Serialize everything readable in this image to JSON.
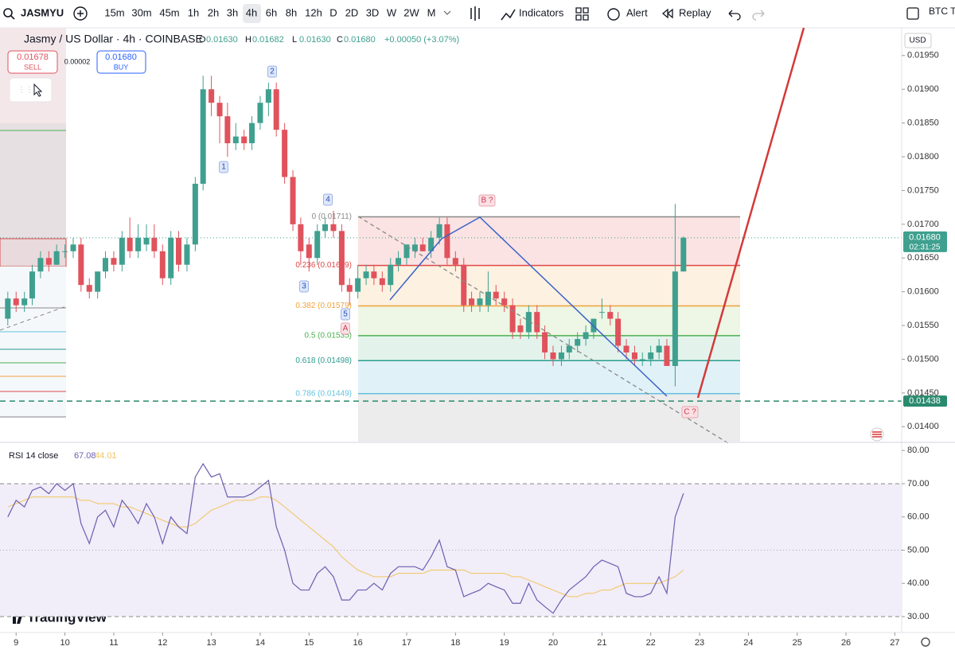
{
  "toolbar": {
    "symbol": "JASMYU",
    "intervals": [
      "15m",
      "30m",
      "45m",
      "1h",
      "2h",
      "3h",
      "4h",
      "6h",
      "8h",
      "12h",
      "D",
      "2D",
      "3D",
      "W",
      "2W",
      "M"
    ],
    "indicators": "Indicators",
    "alert": "Alert",
    "replay": "Replay",
    "right": "BTC T"
  },
  "legend": {
    "title": "Jasmy / US Dollar · 4h · COINBASE",
    "fields": [
      {
        "key": "O",
        "value": "0.01630"
      },
      {
        "key": "H",
        "value": "0.01682"
      },
      {
        "key": "L",
        "value": "0.01630"
      },
      {
        "key": "C",
        "value": "0.01680"
      }
    ],
    "change": "+0.00050 (+3.07%)"
  },
  "trade": {
    "sell_price": "0.01678",
    "sell": "SELL",
    "spread": "0.00002",
    "buy_price": "0.01680",
    "buy": "BUY"
  },
  "brand": "TradingView",
  "chart_data": [
    {
      "type": "candlestick",
      "currency": "USD",
      "up_color": "#3fa08f",
      "down_color": "#e0525c",
      "x": [
        8.83,
        9,
        9.17,
        9.33,
        9.5,
        9.67,
        9.83,
        10,
        10.17,
        10.33,
        10.5,
        10.67,
        10.83,
        11,
        11.17,
        11.33,
        11.5,
        11.67,
        11.83,
        12,
        12.17,
        12.33,
        12.5,
        12.67,
        12.83,
        13,
        13.17,
        13.33,
        13.5,
        13.67,
        13.83,
        14,
        14.17,
        14.33,
        14.5,
        14.67,
        14.83,
        15,
        15.17,
        15.33,
        15.5,
        15.67,
        15.83,
        16,
        16.17,
        16.33,
        16.5,
        16.67,
        16.83,
        17,
        17.17,
        17.33,
        17.5,
        17.67,
        17.83,
        18,
        18.17,
        18.33,
        18.5,
        18.67,
        18.83,
        19,
        19.17,
        19.33,
        19.5,
        19.67,
        19.83,
        20,
        20.17,
        20.33,
        20.5,
        20.67,
        20.83,
        21,
        21.17,
        21.33,
        21.5,
        21.67,
        21.83,
        22,
        22.17,
        22.33,
        22.5,
        22.67
      ],
      "ohlc": [
        [
          0.0156,
          0.016,
          0.0155,
          0.0159
        ],
        [
          0.0159,
          0.016,
          0.0157,
          0.0158
        ],
        [
          0.0158,
          0.016,
          0.0157,
          0.0159
        ],
        [
          0.0159,
          0.0164,
          0.0158,
          0.0163
        ],
        [
          0.0163,
          0.0166,
          0.0162,
          0.0165
        ],
        [
          0.0165,
          0.0166,
          0.0163,
          0.0164
        ],
        [
          0.0164,
          0.0167,
          0.0164,
          0.0166
        ],
        [
          0.0166,
          0.0167,
          0.0165,
          0.0166
        ],
        [
          0.0166,
          0.0168,
          0.0165,
          0.0167
        ],
        [
          0.0167,
          0.0168,
          0.016,
          0.0161
        ],
        [
          0.0161,
          0.0162,
          0.0159,
          0.016
        ],
        [
          0.016,
          0.0163,
          0.0159,
          0.0163
        ],
        [
          0.0163,
          0.0166,
          0.0162,
          0.0165
        ],
        [
          0.0165,
          0.0166,
          0.0163,
          0.0164
        ],
        [
          0.0164,
          0.0169,
          0.0163,
          0.0168
        ],
        [
          0.0168,
          0.0171,
          0.0165,
          0.0166
        ],
        [
          0.0166,
          0.017,
          0.0165,
          0.0168
        ],
        [
          0.0167,
          0.017,
          0.0166,
          0.0168
        ],
        [
          0.0168,
          0.017,
          0.0165,
          0.0166
        ],
        [
          0.0166,
          0.0167,
          0.0161,
          0.0162
        ],
        [
          0.0162,
          0.0169,
          0.0161,
          0.0168
        ],
        [
          0.0168,
          0.0169,
          0.0163,
          0.0164
        ],
        [
          0.0164,
          0.0168,
          0.0163,
          0.0167
        ],
        [
          0.0167,
          0.0177,
          0.0166,
          0.0176
        ],
        [
          0.0176,
          0.0192,
          0.0175,
          0.019
        ],
        [
          0.019,
          0.0192,
          0.0186,
          0.0188
        ],
        [
          0.0188,
          0.0189,
          0.0182,
          0.0186
        ],
        [
          0.0186,
          0.0188,
          0.018,
          0.0182
        ],
        [
          0.0182,
          0.0185,
          0.0181,
          0.0183
        ],
        [
          0.0183,
          0.0184,
          0.0181,
          0.0182
        ],
        [
          0.0182,
          0.0186,
          0.0181,
          0.0185
        ],
        [
          0.0185,
          0.0189,
          0.0184,
          0.0188
        ],
        [
          0.0188,
          0.0191,
          0.0186,
          0.019
        ],
        [
          0.019,
          0.0191,
          0.0183,
          0.0184
        ],
        [
          0.0184,
          0.0185,
          0.0176,
          0.0177
        ],
        [
          0.0177,
          0.0178,
          0.0169,
          0.017
        ],
        [
          0.017,
          0.0171,
          0.0164,
          0.0166
        ],
        [
          0.0167,
          0.0168,
          0.0163,
          0.0165
        ],
        [
          0.0165,
          0.017,
          0.0164,
          0.0169
        ],
        [
          0.0169,
          0.0171,
          0.0168,
          0.017
        ],
        [
          0.017,
          0.0172,
          0.0168,
          0.0169
        ],
        [
          0.0169,
          0.017,
          0.016,
          0.0161
        ],
        [
          0.0161,
          0.0162,
          0.0158,
          0.016
        ],
        [
          0.016,
          0.0164,
          0.0159,
          0.0162
        ],
        [
          0.0162,
          0.0164,
          0.0161,
          0.0163
        ],
        [
          0.0163,
          0.0164,
          0.0161,
          0.0162
        ],
        [
          0.0162,
          0.0163,
          0.016,
          0.0161
        ],
        [
          0.0161,
          0.0165,
          0.016,
          0.0164
        ],
        [
          0.0164,
          0.0166,
          0.0163,
          0.0165
        ],
        [
          0.0165,
          0.0167,
          0.0164,
          0.0167
        ],
        [
          0.0166,
          0.0168,
          0.0165,
          0.0167
        ],
        [
          0.0167,
          0.0168,
          0.0166,
          0.0166
        ],
        [
          0.0166,
          0.0169,
          0.0165,
          0.0168
        ],
        [
          0.0168,
          0.0171,
          0.0167,
          0.017
        ],
        [
          0.017,
          0.0171,
          0.0164,
          0.0165
        ],
        [
          0.0165,
          0.0166,
          0.0163,
          0.0164
        ],
        [
          0.0164,
          0.0165,
          0.0157,
          0.0158
        ],
        [
          0.0159,
          0.016,
          0.0157,
          0.0158
        ],
        [
          0.0158,
          0.016,
          0.0157,
          0.0159
        ],
        [
          0.0158,
          0.0163,
          0.0157,
          0.016
        ],
        [
          0.016,
          0.0161,
          0.0158,
          0.0159
        ],
        [
          0.0159,
          0.016,
          0.0157,
          0.0158
        ],
        [
          0.0158,
          0.0159,
          0.0153,
          0.0154
        ],
        [
          0.0155,
          0.0156,
          0.0153,
          0.0154
        ],
        [
          0.0154,
          0.0158,
          0.0153,
          0.0157
        ],
        [
          0.0157,
          0.0158,
          0.0153,
          0.0154
        ],
        [
          0.0154,
          0.0155,
          0.015,
          0.0151
        ],
        [
          0.0151,
          0.0152,
          0.0149,
          0.015
        ],
        [
          0.015,
          0.0152,
          0.0149,
          0.0151
        ],
        [
          0.0151,
          0.0153,
          0.015,
          0.0152
        ],
        [
          0.0152,
          0.0154,
          0.0151,
          0.0153
        ],
        [
          0.0153,
          0.0155,
          0.0152,
          0.0154
        ],
        [
          0.0154,
          0.0156,
          0.0153,
          0.0156
        ],
        [
          0.0157,
          0.0159,
          0.0156,
          0.0157
        ],
        [
          0.0157,
          0.0158,
          0.0155,
          0.0156
        ],
        [
          0.0156,
          0.0157,
          0.0151,
          0.0152
        ],
        [
          0.0152,
          0.0153,
          0.015,
          0.0151
        ],
        [
          0.0151,
          0.0152,
          0.0149,
          0.015
        ],
        [
          0.015,
          0.0151,
          0.0149,
          0.015
        ],
        [
          0.015,
          0.0152,
          0.0149,
          0.0151
        ],
        [
          0.0151,
          0.0153,
          0.015,
          0.0152
        ],
        [
          0.0152,
          0.0153,
          0.0149,
          0.0149
        ],
        [
          0.0149,
          0.0173,
          0.0146,
          0.0163
        ],
        [
          0.0163,
          0.01682,
          0.0163,
          0.0168
        ]
      ],
      "xlim": [
        8.67,
        27.14
      ],
      "xticks": [
        9,
        10,
        11,
        12,
        13,
        14,
        15,
        16,
        17,
        18,
        19,
        20,
        21,
        22,
        23,
        24,
        25,
        26,
        27
      ],
      "ylim": [
        0.01378,
        0.01991
      ],
      "yticks": [
        {
          "value": 0.014,
          "label": "0.01400"
        },
        {
          "value": 0.0145,
          "label": "0.01450"
        },
        {
          "value": 0.015,
          "label": "0.01500"
        },
        {
          "value": 0.0155,
          "label": "0.01550"
        },
        {
          "value": 0.016,
          "label": "0.01600"
        },
        {
          "value": 0.0165,
          "label": "0.01650"
        },
        {
          "value": 0.017,
          "label": "0.01700"
        },
        {
          "value": 0.0175,
          "label": "0.01750"
        },
        {
          "value": 0.018,
          "label": "0.01800"
        },
        {
          "value": 0.0185,
          "label": "0.01850"
        },
        {
          "value": 0.019,
          "label": "0.01900"
        },
        {
          "value": 0.0195,
          "label": "0.01950"
        }
      ],
      "last_price": {
        "value": 0.0168,
        "label": "0.01680"
      },
      "countdown": "02:31:25",
      "alert_price": {
        "value": 0.01438,
        "label": "0.01438"
      },
      "fib": [
        {
          "label": "0 (0.01711)",
          "price": 0.01711,
          "color": "#8a8a8a",
          "fill": "#fbe3e3"
        },
        {
          "label": "0.236 (0.01639)",
          "price": 0.01639,
          "color": "#e04848",
          "fill": "#fdf1e1"
        },
        {
          "label": "0.382 (0.01579)",
          "price": 0.01579,
          "color": "#f0a23c",
          "fill": "#eef6e5"
        },
        {
          "label": "0.5 (0.01535)",
          "price": 0.01535,
          "color": "#4caf50",
          "fill": "#e3f3ec"
        },
        {
          "label": "0.618 (0.01498)",
          "price": 0.01498,
          "color": "#2a9d8f",
          "fill": "#e0f1f7"
        },
        {
          "label": "0.786 (0.01449)",
          "price": 0.01449,
          "color": "#64c1e0",
          "fill": "#ececec"
        }
      ],
      "waves": [
        "1",
        "2",
        "3",
        "4",
        "5",
        "A",
        "B ?",
        "C ?"
      ]
    },
    {
      "type": "line",
      "title": "RSI 14 close",
      "last_labels": [
        "67.08",
        "44.01"
      ],
      "x": [
        8.83,
        9,
        9.17,
        9.33,
        9.5,
        9.67,
        9.83,
        10,
        10.17,
        10.33,
        10.5,
        10.67,
        10.83,
        11,
        11.17,
        11.33,
        11.5,
        11.67,
        11.83,
        12,
        12.17,
        12.33,
        12.5,
        12.67,
        12.83,
        13,
        13.17,
        13.33,
        13.5,
        13.67,
        13.83,
        14,
        14.17,
        14.33,
        14.5,
        14.67,
        14.83,
        15,
        15.17,
        15.33,
        15.5,
        15.67,
        15.83,
        16,
        16.17,
        16.33,
        16.5,
        16.67,
        16.83,
        17,
        17.17,
        17.33,
        17.5,
        17.67,
        17.83,
        18,
        18.17,
        18.33,
        18.5,
        18.67,
        18.83,
        19,
        19.17,
        19.33,
        19.5,
        19.67,
        19.83,
        20,
        20.17,
        20.33,
        20.5,
        20.67,
        20.83,
        21,
        21.17,
        21.33,
        21.5,
        21.67,
        21.83,
        22,
        22.17,
        22.33,
        22.5,
        22.67
      ],
      "series": [
        {
          "color": "#6c5fb0",
          "values": [
            60,
            65,
            63,
            68,
            69,
            67,
            70,
            68,
            70,
            58,
            52,
            60,
            62,
            57,
            65,
            62,
            58,
            64,
            60,
            52,
            60,
            57,
            55,
            72,
            76,
            72,
            73,
            66,
            66,
            66,
            67,
            69,
            71,
            57,
            50,
            40,
            38,
            38,
            43,
            45,
            42,
            35,
            35,
            38,
            38,
            40,
            38,
            43,
            45,
            45,
            45,
            44,
            48,
            53,
            45,
            44,
            36,
            37,
            38,
            40,
            39,
            38,
            34,
            34,
            40,
            35,
            33,
            31,
            35,
            38,
            40,
            42,
            45,
            47,
            46,
            45,
            37,
            36,
            36,
            37,
            42,
            37,
            60,
            67.08
          ]
        },
        {
          "color": "#f2c55c",
          "values": [
            63,
            64,
            65,
            66,
            66,
            66,
            66,
            66,
            66,
            65,
            65,
            64,
            64,
            64,
            63,
            63,
            62,
            61,
            60,
            59,
            58,
            57,
            57,
            58,
            60,
            62,
            63,
            64,
            65,
            65,
            65,
            66,
            66,
            65,
            63,
            61,
            59,
            57,
            55,
            53,
            51,
            48,
            46,
            44,
            43,
            42,
            42,
            42,
            43,
            43,
            43,
            43,
            44,
            44,
            44,
            44,
            44,
            43,
            43,
            43,
            43,
            43,
            42,
            42,
            41,
            40,
            39,
            38,
            37,
            36,
            36,
            37,
            37,
            38,
            38,
            39,
            40,
            40,
            40,
            40,
            40,
            41,
            42,
            44.01
          ]
        }
      ],
      "ylim": [
        26.4,
        82.2
      ],
      "band": [
        30,
        70
      ],
      "midline": 50,
      "yticks": [
        {
          "value": 30,
          "label": "30.00"
        },
        {
          "value": 40,
          "label": "40.00"
        },
        {
          "value": 50,
          "label": "50.00"
        },
        {
          "value": 60,
          "label": "60.00"
        },
        {
          "value": 70,
          "label": "70.00"
        },
        {
          "value": 80,
          "label": "80.00"
        }
      ]
    }
  ]
}
